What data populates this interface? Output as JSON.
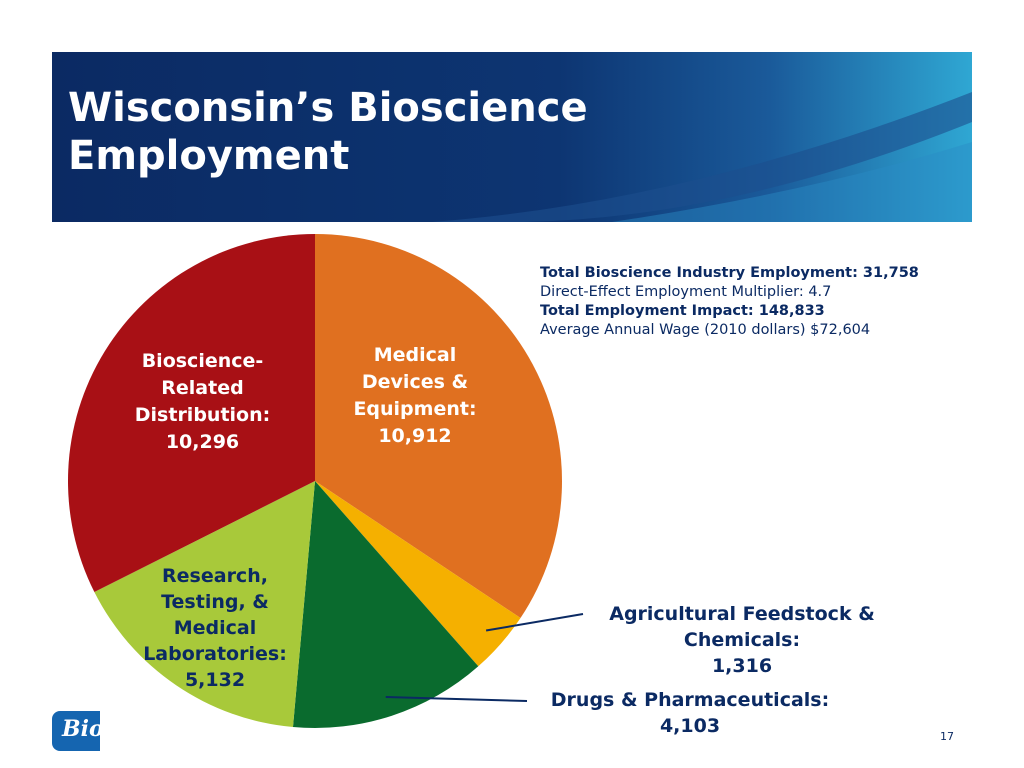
{
  "slide": {
    "title": "Wisconsin’s Bioscience\nEmployment",
    "page_number": "17",
    "logo_text": "Bio"
  },
  "stats": {
    "line1": "Total Bioscience Industry Employment: 31,758",
    "line2": "Direct-Effect Employment Multiplier: 4.7",
    "line3": "Total Employment Impact: 148,833",
    "line4": "Average Annual Wage (2010 dollars) $72,604"
  },
  "chart_data": {
    "type": "pie",
    "categories": [
      "Medical Devices & Equipment",
      "Agricultural Feedstock & Chemicals",
      "Drugs & Pharmaceuticals",
      "Research, Testing, & Medical Laboratories",
      "Bioscience-Related Distribution"
    ],
    "values": [
      10912,
      1316,
      4103,
      5132,
      10296
    ],
    "colors": [
      "#e07020",
      "#f5b000",
      "#0a6b2e",
      "#a8c93a",
      "#a81015"
    ],
    "start_angle_deg": 0,
    "direction": "clockwise",
    "labels": [
      {
        "text": "Medical\nDevices &\nEquipment:\n10,912",
        "color": "#ffffff"
      },
      {
        "text": "Agricultural Feedstock &\nChemicals:\n1,316",
        "color": "#0b2a63"
      },
      {
        "text": "Drugs & Pharmaceuticals:\n4,103",
        "color": "#0b2a63"
      },
      {
        "text": "Research,\nTesting, &\nMedical\nLaboratories:\n5,132",
        "color": "#0b2a63"
      },
      {
        "text": "Bioscience-\nRelated\nDistribution:\n10,296",
        "color": "#ffffff"
      }
    ]
  }
}
